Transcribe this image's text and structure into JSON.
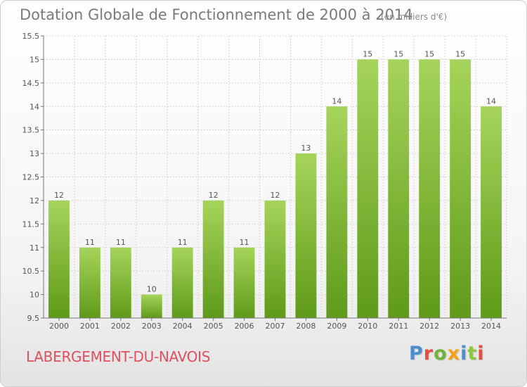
{
  "header": {
    "title": "Dotation Globale de Fonctionnement de 2000 à 2014",
    "unit": "(en milliers d'€)"
  },
  "footer": {
    "commune": "LABERGEMENT-DU-NAVOIS",
    "logo": {
      "p": "P",
      "r": "r",
      "o": "o",
      "x": "x",
      "i1": "i",
      "t": "t",
      "i2": "i"
    }
  },
  "colors": {
    "bar_light": "#a6d45a",
    "bar_dark": "#5f9a1a",
    "grid": "#d6d6d6",
    "axis": "#777777"
  },
  "chart_data": {
    "type": "bar",
    "title": "Dotation Globale de Fonctionnement de 2000 à 2014",
    "subtitle": "(en milliers d'€)",
    "xlabel": "",
    "ylabel": "",
    "categories": [
      "2000",
      "2001",
      "2002",
      "2003",
      "2004",
      "2005",
      "2006",
      "2007",
      "2008",
      "2009",
      "2010",
      "2011",
      "2012",
      "2013",
      "2014"
    ],
    "values": [
      12,
      11,
      11,
      10,
      11,
      12,
      11,
      12,
      13,
      14,
      15,
      15,
      15,
      15,
      14
    ],
    "data_labels": [
      "12",
      "11",
      "11",
      "10",
      "11",
      "12",
      "11",
      "12",
      "13",
      "14",
      "15",
      "15",
      "15",
      "15",
      "14"
    ],
    "ylim": [
      9.5,
      15.5
    ],
    "yticks": [
      9.5,
      10,
      10.5,
      11,
      11.5,
      12,
      12.5,
      13,
      13.5,
      14,
      14.5,
      15,
      15.5
    ],
    "ytick_labels": [
      "9.5",
      "10",
      "10.5",
      "11",
      "11.5",
      "12",
      "12.5",
      "13",
      "13.5",
      "14",
      "14.5",
      "15",
      "15.5"
    ],
    "grid": true,
    "legend": "none"
  }
}
